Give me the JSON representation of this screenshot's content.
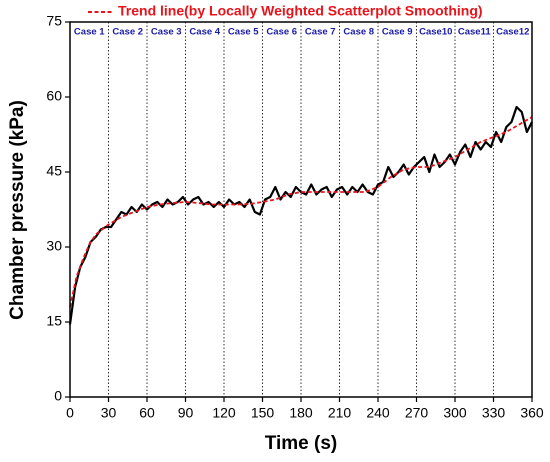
{
  "chart_data": {
    "type": "line",
    "x_label": "Time (s)",
    "y_label": "Chamber pressure (kPa)",
    "xlim": [
      0,
      360
    ],
    "xticks": [
      0,
      30,
      60,
      90,
      120,
      150,
      180,
      210,
      240,
      270,
      300,
      330,
      360
    ],
    "ylim": [
      0,
      75
    ],
    "yticks": [
      0,
      15,
      30,
      45,
      60,
      75
    ],
    "annotations": [
      "Case 1",
      "Case 2",
      "Case 3",
      "Case 4",
      "Case 5",
      "Case 6",
      "Case 7",
      "Case 8",
      "Case 9",
      "Case10",
      "Case11",
      "Case12"
    ],
    "legend": "top",
    "series": [
      {
        "color": "#000000",
        "x": [
          0,
          4,
          8,
          12,
          16,
          20,
          24,
          28,
          32,
          36,
          40,
          44,
          48,
          52,
          56,
          60,
          64,
          68,
          72,
          76,
          80,
          84,
          88,
          92,
          96,
          100,
          104,
          108,
          112,
          116,
          120,
          124,
          128,
          132,
          136,
          140,
          144,
          148,
          152,
          156,
          160,
          164,
          168,
          172,
          176,
          180,
          184,
          188,
          192,
          196,
          200,
          204,
          208,
          212,
          216,
          220,
          224,
          228,
          232,
          236,
          240,
          244,
          248,
          252,
          256,
          260,
          264,
          268,
          272,
          276,
          280,
          284,
          288,
          292,
          296,
          300,
          304,
          308,
          312,
          316,
          320,
          324,
          328,
          332,
          336,
          340,
          344,
          348,
          352,
          356,
          360
        ],
        "values": [
          14.5,
          22,
          26,
          28,
          31,
          32,
          33.5,
          34,
          34,
          35.5,
          37,
          36.5,
          38,
          37,
          38.5,
          37.5,
          38.5,
          39,
          38,
          39.5,
          38.5,
          39,
          40,
          38.5,
          39.5,
          40,
          38.5,
          39,
          38,
          39,
          38,
          39.5,
          38.5,
          39,
          38,
          39.5,
          37,
          36.5,
          39.5,
          40,
          42,
          39.5,
          41,
          40,
          42,
          41,
          40.5,
          42.5,
          40.5,
          41.5,
          42,
          40,
          41.5,
          42,
          40.5,
          42,
          41,
          42.5,
          41,
          40.5,
          42.5,
          43,
          46,
          44,
          45,
          46.5,
          44.5,
          46,
          47,
          48,
          45,
          48.5,
          46,
          47,
          48.5,
          46.5,
          49,
          50.5,
          48,
          51,
          49.5,
          51,
          50,
          53,
          51,
          54,
          55,
          58,
          57,
          53,
          55
        ]
      },
      {
        "name": "Trend line(by Locally Weighted Scatterplot Smoothing)",
        "color": "#e8141c",
        "dashed": true,
        "x": [
          0,
          5,
          10,
          15,
          20,
          25,
          30,
          40,
          50,
          60,
          70,
          80,
          90,
          100,
          110,
          120,
          130,
          140,
          150,
          160,
          170,
          180,
          190,
          200,
          210,
          220,
          230,
          240,
          250,
          260,
          270,
          280,
          290,
          300,
          310,
          320,
          330,
          340,
          350,
          360
        ],
        "values": [
          18,
          24,
          27.5,
          30.5,
          32.5,
          33.5,
          34.5,
          36,
          37,
          38,
          38.5,
          38.8,
          39,
          38.8,
          38.5,
          38.5,
          38.5,
          38.6,
          39,
          39.5,
          40.5,
          41,
          41,
          41,
          41,
          41,
          41,
          42,
          44,
          45.5,
          46,
          46,
          47,
          48,
          49.5,
          51,
          52,
          53,
          54.5,
          56
        ]
      }
    ]
  }
}
